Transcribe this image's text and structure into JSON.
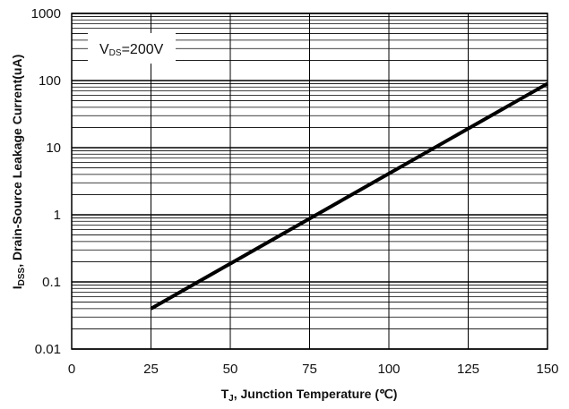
{
  "chart_data": {
    "type": "line",
    "xlabel": {
      "main": "T",
      "sub": "J",
      "rest": ", Junction Temperature (℃)"
    },
    "ylabel": {
      "main": "I",
      "sub": "DSS",
      "rest": ", Drain-Source Leakage Current(uA)"
    },
    "annotation": {
      "main": "V",
      "sub": "DS",
      "rest": "=200V"
    },
    "xlim": [
      0,
      150
    ],
    "ylim": [
      0.01,
      1000
    ],
    "yscale": "log",
    "grid": true,
    "x_ticks": [
      0,
      25,
      50,
      75,
      100,
      125,
      150
    ],
    "x_tick_labels": [
      "0",
      "25",
      "50",
      "75",
      "100",
      "125",
      "150"
    ],
    "y_ticks": [
      0.01,
      0.1,
      1,
      10,
      100,
      1000
    ],
    "y_tick_labels": [
      "0.01",
      "0.1",
      "1",
      "10",
      "100",
      "1000"
    ],
    "series": [
      {
        "x": [
          25,
          150
        ],
        "y": [
          0.04,
          90
        ],
        "color": "#000000"
      }
    ]
  }
}
